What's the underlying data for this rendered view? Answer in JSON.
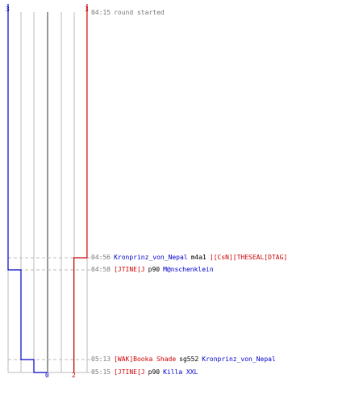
{
  "colors": {
    "team_blue": "#0000cc",
    "team_red": "#cc0000",
    "time": "#777777",
    "grid": "#bbbbbb",
    "center": "#777777",
    "dash": "#bbbbbb",
    "weapon": "#000000"
  },
  "scores": {
    "blue_start": "3",
    "red_start": "3",
    "blue_end": "0",
    "red_end": "2"
  },
  "events": [
    {
      "time": "04:15",
      "text": "round started"
    },
    {
      "time": "04:56",
      "killer": "Kronprinz_von_Nepal",
      "killer_team": "blue",
      "weapon": "m4a1",
      "victim": "][CsN][THESEAL[DTAG]",
      "victim_team": "red"
    },
    {
      "time": "04:58",
      "killer": "[JTINE[J",
      "killer_team": "red",
      "weapon": "p90",
      "victim": "M@nschenklein",
      "victim_team": "blue"
    },
    {
      "time": "05:13",
      "killer": "[WAK]Booka Shade",
      "killer_team": "red",
      "weapon": "sg552",
      "victim": "Kronprinz_von_Nepal",
      "victim_team": "blue"
    },
    {
      "time": "05:15",
      "killer": "[JTINE[J",
      "killer_team": "red",
      "weapon": "p90",
      "victim": "Killa XXL",
      "victim_team": "blue"
    }
  ]
}
